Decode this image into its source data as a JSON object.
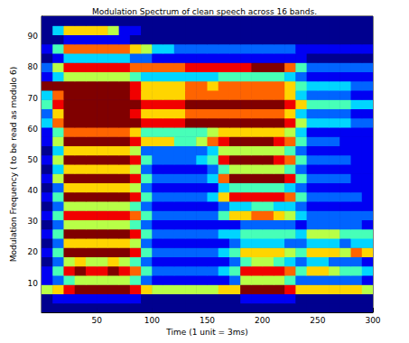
{
  "chart_data": {
    "type": "heatmap",
    "title": "Modulation Spectrum of clean speech across 16 bands.",
    "x_label": "Time (1 unit = 3ms)",
    "y_label": "Modulation Frequency ( to be read as modulo 6)",
    "x": [
      5,
      15,
      25,
      35,
      45,
      55,
      65,
      75,
      85,
      95,
      105,
      115,
      125,
      135,
      145,
      155,
      165,
      175,
      185,
      195,
      205,
      215,
      225,
      235,
      245,
      255,
      265,
      275,
      285,
      295
    ],
    "y": [
      2,
      5,
      8,
      11,
      14,
      17,
      20,
      23,
      26,
      29,
      32,
      35,
      38,
      41,
      44,
      47,
      50,
      53,
      56,
      59,
      62,
      65,
      68,
      71,
      74,
      77,
      80,
      83,
      86,
      89,
      92,
      95
    ],
    "z": [
      [
        0,
        0,
        0,
        0,
        0,
        0,
        0,
        0,
        0,
        0,
        0,
        0,
        0,
        0,
        0,
        0,
        0,
        0,
        0,
        0,
        0,
        0,
        0,
        0,
        0,
        0,
        0,
        0,
        0,
        0
      ],
      [
        0,
        1,
        1,
        1,
        1,
        1,
        1,
        1,
        1,
        0,
        0,
        0,
        0,
        0,
        0,
        0,
        0,
        0,
        1,
        1,
        1,
        1,
        1,
        0,
        0,
        0,
        0,
        0,
        0,
        0
      ],
      [
        5,
        6,
        8,
        9,
        9,
        9,
        9,
        9,
        8,
        6,
        5,
        5,
        5,
        5,
        5,
        5,
        6,
        6,
        9,
        9,
        9,
        9,
        8,
        6,
        6,
        6,
        6,
        6,
        6,
        5
      ],
      [
        1,
        2,
        4,
        5,
        5,
        5,
        5,
        5,
        4,
        2,
        1,
        1,
        1,
        1,
        1,
        1,
        1,
        2,
        5,
        5,
        5,
        5,
        4,
        2,
        2,
        2,
        2,
        2,
        2,
        1
      ],
      [
        1,
        4,
        8,
        9,
        8,
        8,
        9,
        8,
        7,
        4,
        2,
        2,
        2,
        2,
        2,
        2,
        3,
        4,
        8,
        8,
        8,
        8,
        7,
        4,
        6,
        6,
        5,
        4,
        4,
        3
      ],
      [
        0,
        2,
        5,
        6,
        5,
        5,
        6,
        5,
        4,
        2,
        1,
        1,
        1,
        1,
        1,
        1,
        1,
        2,
        4,
        5,
        5,
        4,
        3,
        2,
        3,
        3,
        2,
        2,
        2,
        1
      ],
      [
        1,
        4,
        9,
        9,
        9,
        9,
        9,
        9,
        8,
        4,
        2,
        2,
        2,
        2,
        2,
        2,
        3,
        4,
        6,
        6,
        6,
        6,
        5,
        4,
        6,
        6,
        6,
        5,
        7,
        6
      ],
      [
        0,
        2,
        6,
        6,
        6,
        6,
        6,
        6,
        5,
        2,
        1,
        1,
        1,
        1,
        1,
        1,
        1,
        2,
        3,
        3,
        3,
        3,
        2,
        2,
        3,
        3,
        3,
        2,
        3,
        3
      ],
      [
        1,
        4,
        9,
        9,
        9,
        9,
        9,
        9,
        8,
        4,
        2,
        2,
        2,
        2,
        2,
        2,
        3,
        3,
        4,
        4,
        4,
        4,
        4,
        3,
        5,
        5,
        5,
        4,
        4,
        4
      ],
      [
        0,
        2,
        5,
        5,
        5,
        5,
        5,
        5,
        4,
        2,
        1,
        1,
        1,
        1,
        1,
        1,
        1,
        1,
        2,
        2,
        2,
        2,
        2,
        1,
        2,
        2,
        2,
        2,
        2,
        1
      ],
      [
        1,
        4,
        8,
        8,
        8,
        8,
        8,
        8,
        7,
        4,
        2,
        2,
        2,
        2,
        2,
        2,
        4,
        6,
        6,
        7,
        7,
        6,
        5,
        3,
        2,
        2,
        2,
        2,
        2,
        2
      ],
      [
        0,
        2,
        5,
        5,
        5,
        5,
        5,
        5,
        4,
        2,
        1,
        1,
        1,
        1,
        1,
        1,
        2,
        3,
        3,
        4,
        4,
        3,
        3,
        2,
        1,
        1,
        1,
        1,
        1,
        1
      ],
      [
        1,
        4,
        9,
        9,
        9,
        9,
        9,
        9,
        8,
        4,
        2,
        2,
        2,
        2,
        2,
        3,
        6,
        8,
        8,
        8,
        8,
        8,
        7,
        4,
        2,
        2,
        2,
        2,
        2,
        1
      ],
      [
        0,
        2,
        6,
        6,
        6,
        6,
        6,
        6,
        5,
        2,
        1,
        1,
        1,
        1,
        1,
        1,
        3,
        4,
        4,
        4,
        4,
        4,
        3,
        2,
        1,
        1,
        1,
        1,
        1,
        1
      ],
      [
        1,
        5,
        9,
        9,
        9,
        9,
        9,
        9,
        8,
        4,
        2,
        2,
        2,
        2,
        2,
        3,
        7,
        9,
        9,
        9,
        9,
        9,
        8,
        4,
        2,
        2,
        2,
        2,
        1,
        1
      ],
      [
        0,
        3,
        6,
        6,
        6,
        6,
        6,
        6,
        5,
        2,
        1,
        1,
        1,
        1,
        1,
        2,
        4,
        5,
        5,
        5,
        5,
        5,
        4,
        2,
        1,
        1,
        1,
        1,
        1,
        1
      ],
      [
        1,
        5,
        9,
        9,
        9,
        9,
        9,
        9,
        8,
        4,
        2,
        2,
        2,
        2,
        3,
        4,
        8,
        9,
        9,
        9,
        9,
        8,
        7,
        4,
        2,
        2,
        2,
        2,
        1,
        1
      ],
      [
        0,
        3,
        6,
        6,
        6,
        6,
        6,
        6,
        5,
        2,
        2,
        2,
        2,
        2,
        2,
        3,
        5,
        5,
        5,
        5,
        5,
        5,
        4,
        2,
        1,
        1,
        1,
        1,
        1,
        1
      ],
      [
        1,
        5,
        9,
        9,
        9,
        9,
        9,
        9,
        8,
        6,
        6,
        6,
        4,
        4,
        5,
        7,
        8,
        9,
        9,
        9,
        9,
        8,
        7,
        4,
        2,
        2,
        2,
        1,
        1,
        1
      ],
      [
        1,
        4,
        7,
        7,
        7,
        7,
        7,
        7,
        6,
        4,
        4,
        4,
        4,
        4,
        4,
        5,
        6,
        6,
        6,
        6,
        6,
        6,
        5,
        3,
        1,
        1,
        1,
        1,
        1,
        1
      ],
      [
        3,
        7,
        9,
        9,
        9,
        9,
        9,
        9,
        9,
        8,
        8,
        8,
        8,
        9,
        9,
        9,
        9,
        9,
        9,
        9,
        9,
        9,
        8,
        5,
        3,
        3,
        3,
        3,
        2,
        2
      ],
      [
        2,
        6,
        9,
        9,
        9,
        9,
        9,
        9,
        8,
        6,
        6,
        6,
        6,
        7,
        7,
        7,
        7,
        7,
        7,
        7,
        7,
        7,
        6,
        3,
        2,
        2,
        2,
        2,
        1,
        1
      ],
      [
        4,
        8,
        9,
        9,
        9,
        9,
        9,
        9,
        9,
        8,
        8,
        8,
        8,
        9,
        9,
        9,
        9,
        9,
        9,
        9,
        9,
        9,
        8,
        6,
        4,
        4,
        4,
        4,
        3,
        3
      ],
      [
        3,
        7,
        9,
        9,
        9,
        9,
        9,
        9,
        8,
        6,
        6,
        6,
        6,
        7,
        7,
        7,
        7,
        7,
        7,
        7,
        7,
        7,
        6,
        3,
        2,
        2,
        2,
        2,
        1,
        1
      ],
      [
        9,
        9,
        9,
        9,
        9,
        9,
        9,
        9,
        8,
        6,
        6,
        6,
        6,
        7,
        7,
        6,
        7,
        7,
        7,
        7,
        7,
        7,
        6,
        4,
        3,
        3,
        3,
        3,
        2,
        2
      ],
      [
        1,
        3,
        5,
        5,
        5,
        5,
        5,
        5,
        4,
        3,
        3,
        3,
        3,
        3,
        3,
        3,
        4,
        4,
        4,
        4,
        4,
        4,
        3,
        2,
        1,
        1,
        1,
        1,
        1,
        1
      ],
      [
        2,
        5,
        8,
        8,
        8,
        8,
        8,
        8,
        7,
        7,
        7,
        7,
        7,
        8,
        8,
        8,
        8,
        8,
        8,
        9,
        9,
        9,
        7,
        4,
        2,
        2,
        2,
        2,
        2,
        2
      ],
      [
        0,
        1,
        3,
        3,
        3,
        3,
        3,
        3,
        2,
        2,
        1,
        1,
        1,
        1,
        1,
        1,
        1,
        1,
        1,
        1,
        1,
        1,
        1,
        1,
        0,
        0,
        0,
        0,
        0,
        0
      ],
      [
        1,
        4,
        7,
        7,
        7,
        7,
        7,
        7,
        6,
        5,
        3,
        3,
        2,
        2,
        2,
        2,
        2,
        2,
        2,
        2,
        2,
        2,
        2,
        1,
        1,
        1,
        1,
        1,
        1,
        1
      ],
      [
        0,
        0,
        1,
        1,
        1,
        1,
        1,
        1,
        0,
        0,
        0,
        0,
        0,
        0,
        0,
        0,
        0,
        0,
        0,
        0,
        0,
        0,
        0,
        0,
        0,
        0,
        0,
        0,
        0,
        0
      ],
      [
        0,
        3,
        6,
        6,
        6,
        6,
        5,
        1,
        1,
        0,
        0,
        0,
        0,
        0,
        0,
        0,
        0,
        0,
        0,
        0,
        0,
        0,
        0,
        0,
        0,
        0,
        0,
        0,
        0,
        0
      ],
      [
        0,
        0,
        0,
        0,
        0,
        0,
        0,
        0,
        0,
        0,
        0,
        0,
        0,
        0,
        0,
        0,
        0,
        0,
        0,
        0,
        0,
        0,
        0,
        0,
        0,
        0,
        0,
        0,
        0,
        0
      ]
    ],
    "zlim": [
      0,
      9
    ],
    "xlim": [
      0,
      300
    ],
    "ylim": [
      0.5,
      96.5
    ],
    "xticks": [
      50,
      100,
      150,
      200,
      250,
      300
    ],
    "yticks": [
      10,
      20,
      30,
      40,
      50,
      60,
      70,
      80,
      90
    ]
  }
}
